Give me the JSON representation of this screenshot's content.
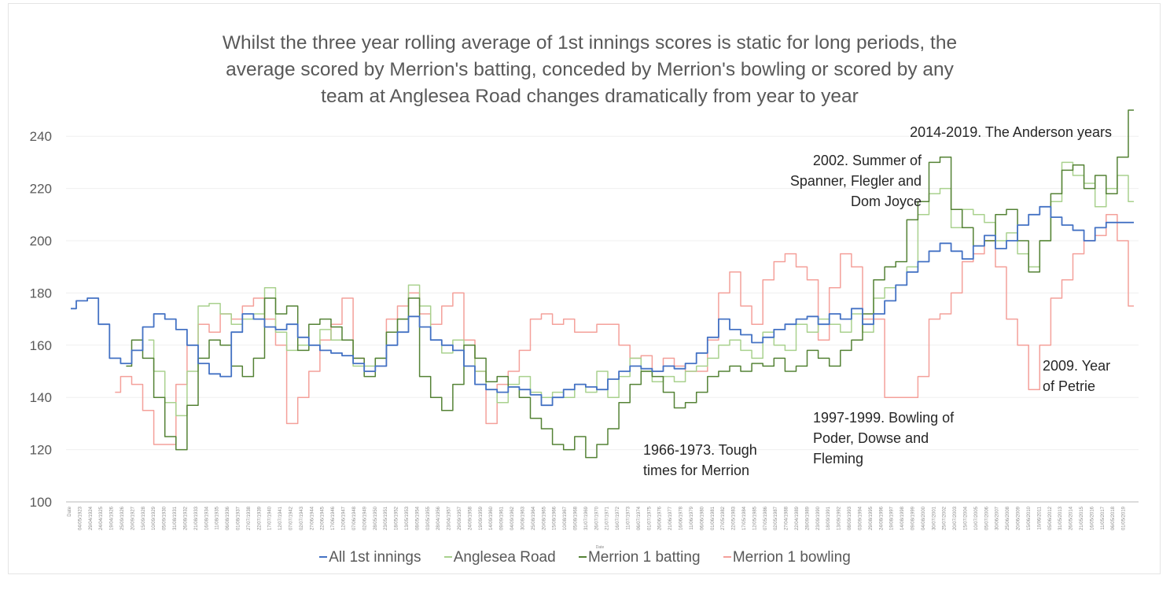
{
  "chart_data": {
    "type": "line",
    "title": "Whilst the three year rolling average of 1st innings scores is static for long periods, the average scored by Merrion's batting, conceded by Merrion's bowling or scored by any team at Anglesea Road changes dramatically from year to year",
    "title_lines": [
      "Whilst the three year rolling average of 1st innings scores is static for long periods, the",
      "average scored by Merrion's batting, conceded by Merrion's bowling or scored by any",
      "team at Anglesea Road changes dramatically from year to year"
    ],
    "xlabel": "Date",
    "ylabel": "",
    "ylim": [
      100,
      250
    ],
    "yticks": [
      100,
      120,
      140,
      160,
      180,
      200,
      220,
      240
    ],
    "grid": true,
    "legend_position": "bottom",
    "x_first_label": "Date",
    "x_tick_labels": [
      "04/05/1923",
      "29/04/1924",
      "24/04/1925",
      "19/04/1926",
      "25/09/1926",
      "20/09/1927",
      "15/09/1928",
      "10/09/1929",
      "05/09/1930",
      "31/08/1931",
      "26/08/1932",
      "21/08/1933",
      "16/08/1934",
      "11/08/1935",
      "06/08/1936",
      "01/08/1937",
      "27/07/1938",
      "22/07/1939",
      "17/07/1940",
      "12/07/1941",
      "07/07/1942",
      "02/07/1943",
      "27/06/1944",
      "22/06/1945",
      "17/06/1946",
      "12/06/1947",
      "07/06/1948",
      "02/06/1949",
      "28/05/1950",
      "23/05/1951",
      "18/05/1952",
      "13/05/1953",
      "08/05/1954",
      "03/05/1955",
      "28/04/1956",
      "23/04/1957",
      "29/09/1957",
      "24/09/1958",
      "19/09/1959",
      "14/09/1960",
      "09/09/1961",
      "04/09/1962",
      "30/08/1963",
      "25/08/1964",
      "20/08/1965",
      "15/08/1966",
      "10/08/1967",
      "05/08/1968",
      "31/07/1969",
      "26/07/1970",
      "21/07/1971",
      "16/07/1972",
      "11/07/1973",
      "06/07/1974",
      "01/07/1975",
      "26/06/1976",
      "21/06/1977",
      "16/06/1978",
      "11/06/1979",
      "06/06/1980",
      "01/06/1981",
      "27/05/1982",
      "22/05/1983",
      "17/05/1984",
      "12/05/1985",
      "07/05/1986",
      "02/05/1987",
      "27/04/1988",
      "22/04/1989",
      "28/09/1989",
      "23/09/1990",
      "18/09/1991",
      "13/09/1992",
      "08/09/1993",
      "03/09/1994",
      "29/08/1995",
      "24/08/1996",
      "19/08/1997",
      "14/08/1998",
      "09/08/1999",
      "04/08/2000",
      "30/07/2001",
      "25/07/2002",
      "20/07/2003",
      "15/07/2004",
      "10/07/2005",
      "05/07/2006",
      "30/06/2007",
      "25/06/2008",
      "20/06/2009",
      "15/06/2010",
      "10/06/2011",
      "05/06/2012",
      "31/05/2013",
      "26/05/2014",
      "21/05/2015",
      "16/05/2016",
      "11/05/2017",
      "06/05/2018",
      "01/05/2019"
    ],
    "x": [
      1923,
      1924,
      1925,
      1926,
      1927,
      1928,
      1929,
      1930,
      1931,
      1932,
      1933,
      1934,
      1935,
      1936,
      1937,
      1938,
      1939,
      1940,
      1941,
      1942,
      1943,
      1944,
      1945,
      1946,
      1947,
      1948,
      1949,
      1950,
      1951,
      1952,
      1953,
      1954,
      1955,
      1956,
      1957,
      1958,
      1959,
      1960,
      1961,
      1962,
      1963,
      1964,
      1965,
      1966,
      1967,
      1968,
      1969,
      1970,
      1971,
      1972,
      1973,
      1974,
      1975,
      1976,
      1977,
      1978,
      1979,
      1980,
      1981,
      1982,
      1983,
      1984,
      1985,
      1986,
      1987,
      1988,
      1989,
      1990,
      1991,
      1992,
      1993,
      1994,
      1995,
      1996,
      1997,
      1998,
      1999,
      2000,
      2001,
      2002,
      2003,
      2004,
      2005,
      2006,
      2007,
      2008,
      2009,
      2010,
      2011,
      2012,
      2013,
      2014,
      2015,
      2016,
      2017,
      2018,
      2019
    ],
    "series": [
      {
        "name": "All 1st innings",
        "color": "#4472c4",
        "values": [
          174,
          177,
          178,
          168,
          155,
          153,
          158,
          167,
          172,
          170,
          166,
          160,
          153,
          149,
          148,
          165,
          172,
          170,
          167,
          166,
          168,
          163,
          160,
          158,
          157,
          156,
          153,
          150,
          152,
          160,
          165,
          171,
          167,
          162,
          160,
          158,
          152,
          145,
          143,
          142,
          144,
          143,
          141,
          137,
          140,
          143,
          145,
          144,
          143,
          147,
          150,
          152,
          151,
          150,
          152,
          151,
          153,
          157,
          163,
          170,
          166,
          164,
          161,
          163,
          166,
          168,
          170,
          171,
          168,
          172,
          170,
          174,
          168,
          172,
          177,
          183,
          188,
          192,
          196,
          199,
          196,
          193,
          198,
          202,
          197,
          200,
          206,
          210,
          213,
          209,
          206,
          204,
          200,
          205,
          207,
          207,
          207
        ]
      },
      {
        "name": "Anglesea Road",
        "color": "#a9d18e",
        "values": [
          null,
          null,
          null,
          null,
          null,
          null,
          null,
          162,
          150,
          138,
          133,
          150,
          175,
          176,
          172,
          168,
          170,
          172,
          182,
          165,
          158,
          160,
          160,
          166,
          162,
          162,
          152,
          152,
          155,
          165,
          170,
          183,
          175,
          162,
          157,
          162,
          160,
          150,
          143,
          138,
          145,
          148,
          142,
          140,
          142,
          140,
          145,
          142,
          150,
          140,
          148,
          155,
          150,
          146,
          148,
          146,
          150,
          152,
          155,
          160,
          162,
          158,
          155,
          165,
          160,
          158,
          168,
          165,
          170,
          168,
          165,
          172,
          165,
          178,
          182,
          183,
          190,
          210,
          218,
          220,
          205,
          212,
          210,
          207,
          200,
          203,
          195,
          190,
          200,
          215,
          230,
          225,
          222,
          213,
          220,
          225,
          215
        ]
      },
      {
        "name": "Merrion 1 batting",
        "color": "#548235",
        "values": [
          null,
          null,
          null,
          null,
          null,
          152,
          162,
          155,
          140,
          125,
          120,
          137,
          155,
          162,
          160,
          152,
          148,
          155,
          178,
          172,
          175,
          158,
          168,
          170,
          167,
          162,
          155,
          148,
          155,
          165,
          170,
          178,
          148,
          140,
          135,
          145,
          160,
          155,
          146,
          148,
          144,
          140,
          132,
          128,
          122,
          120,
          125,
          117,
          122,
          128,
          138,
          145,
          150,
          148,
          142,
          136,
          138,
          142,
          148,
          150,
          152,
          150,
          153,
          152,
          155,
          150,
          152,
          158,
          155,
          152,
          158,
          162,
          172,
          185,
          190,
          192,
          208,
          215,
          230,
          232,
          212,
          205,
          198,
          200,
          210,
          212,
          200,
          188,
          200,
          218,
          227,
          229,
          220,
          225,
          218,
          232,
          250
        ]
      },
      {
        "name": "Merrion 1 bowling",
        "color": "#f4a09a",
        "values": [
          null,
          null,
          null,
          null,
          142,
          148,
          145,
          135,
          122,
          122,
          145,
          160,
          168,
          165,
          172,
          170,
          175,
          178,
          170,
          160,
          130,
          140,
          150,
          162,
          168,
          178,
          155,
          150,
          152,
          170,
          175,
          180,
          172,
          168,
          175,
          180,
          162,
          150,
          130,
          145,
          150,
          158,
          170,
          172,
          168,
          170,
          165,
          165,
          168,
          168,
          160,
          155,
          156,
          150,
          155,
          152,
          150,
          150,
          162,
          180,
          188,
          175,
          168,
          185,
          192,
          195,
          190,
          185,
          162,
          182,
          195,
          190,
          170,
          170,
          140,
          140,
          140,
          148,
          170,
          172,
          180,
          192,
          195,
          200,
          190,
          170,
          160,
          143,
          160,
          178,
          185,
          195,
          200,
          202,
          210,
          200,
          175
        ]
      }
    ],
    "annotations": [
      {
        "id": "anderson",
        "lines": [
          "2014-2019. The Anderson years"
        ],
        "x": 2013,
        "y": 241
      },
      {
        "id": "summer2002",
        "lines": [
          "2002. Summer of",
          "Spanner, Flegler and",
          "Dom Joyce"
        ],
        "x": 2001,
        "y": 229
      },
      {
        "id": "tough",
        "lines": [
          "1966-1973. Tough",
          "times for Merrion"
        ],
        "x": 1971,
        "y": 120
      },
      {
        "id": "bowling9799",
        "lines": [
          "1997-1999. Bowling of",
          "Poder, Dowse and",
          "Fleming"
        ],
        "x": 1993,
        "y": 133
      },
      {
        "id": "petrie",
        "lines": [
          "2009. Year",
          "of Petrie"
        ],
        "x": 2013,
        "y": 145
      }
    ]
  }
}
